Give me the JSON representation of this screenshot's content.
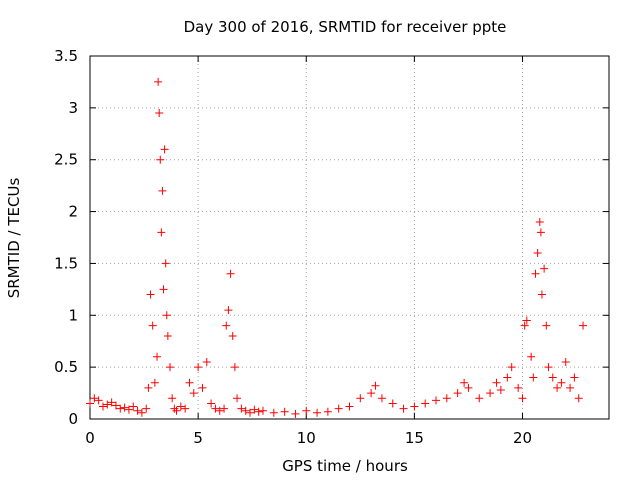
{
  "chart_data": {
    "type": "scatter",
    "title": "Day 300 of 2016, SRMTID for receiver ppte",
    "xlabel": "GPS time / hours",
    "ylabel": "SRMTID / TECUs",
    "xlim": [
      0,
      24
    ],
    "ylim": [
      0,
      3.5
    ],
    "x_ticks": [
      "0",
      "5",
      "10",
      "15",
      "20"
    ],
    "y_ticks": [
      "0",
      "0.5",
      "1",
      "1.5",
      "2",
      "2.5",
      "3",
      "3.5"
    ],
    "grid": true,
    "marker": "plus",
    "series": [
      {
        "name": "SRMTID",
        "color": "#ff0000",
        "x": [
          0.0,
          0.2,
          0.4,
          0.6,
          0.8,
          1.0,
          1.2,
          1.4,
          1.6,
          1.8,
          2.0,
          2.2,
          2.4,
          2.6,
          2.7,
          2.8,
          2.9,
          3.0,
          3.1,
          3.15,
          3.2,
          3.25,
          3.3,
          3.35,
          3.4,
          3.45,
          3.5,
          3.55,
          3.6,
          3.7,
          3.8,
          3.9,
          4.0,
          4.2,
          4.4,
          4.6,
          4.8,
          5.0,
          5.2,
          5.4,
          5.6,
          5.8,
          6.0,
          6.2,
          6.3,
          6.4,
          6.5,
          6.6,
          6.7,
          6.8,
          7.0,
          7.2,
          7.4,
          7.6,
          7.8,
          8.0,
          8.5,
          9.0,
          9.5,
          10.0,
          10.5,
          11.0,
          11.5,
          12.0,
          12.5,
          13.0,
          13.2,
          13.5,
          14.0,
          14.5,
          15.0,
          15.5,
          16.0,
          16.5,
          17.0,
          17.3,
          17.5,
          18.0,
          18.5,
          18.8,
          19.0,
          19.3,
          19.5,
          19.8,
          20.0,
          20.1,
          20.2,
          20.4,
          20.5,
          20.6,
          20.7,
          20.8,
          20.85,
          20.9,
          21.0,
          21.1,
          21.2,
          21.4,
          21.6,
          21.8,
          22.0,
          22.2,
          22.4,
          22.6,
          22.8
        ],
        "y": [
          0.15,
          0.2,
          0.18,
          0.12,
          0.14,
          0.16,
          0.13,
          0.1,
          0.11,
          0.09,
          0.12,
          0.08,
          0.06,
          0.1,
          0.3,
          1.2,
          0.9,
          0.35,
          0.6,
          3.25,
          2.95,
          2.5,
          1.8,
          2.2,
          1.25,
          2.6,
          1.5,
          1.0,
          0.8,
          0.5,
          0.2,
          0.1,
          0.08,
          0.12,
          0.1,
          0.35,
          0.25,
          0.5,
          0.3,
          0.55,
          0.15,
          0.1,
          0.08,
          0.1,
          0.9,
          1.05,
          1.4,
          0.8,
          0.5,
          0.2,
          0.1,
          0.08,
          0.06,
          0.09,
          0.07,
          0.08,
          0.06,
          0.07,
          0.05,
          0.08,
          0.06,
          0.07,
          0.1,
          0.12,
          0.2,
          0.25,
          0.32,
          0.2,
          0.15,
          0.1,
          0.12,
          0.15,
          0.18,
          0.2,
          0.25,
          0.35,
          0.3,
          0.2,
          0.25,
          0.35,
          0.28,
          0.4,
          0.5,
          0.3,
          0.2,
          0.9,
          0.95,
          0.6,
          0.4,
          1.4,
          1.6,
          1.9,
          1.8,
          1.2,
          1.45,
          0.9,
          0.5,
          0.4,
          0.3,
          0.35,
          0.55,
          0.3,
          0.4,
          0.2,
          0.9
        ]
      }
    ]
  }
}
